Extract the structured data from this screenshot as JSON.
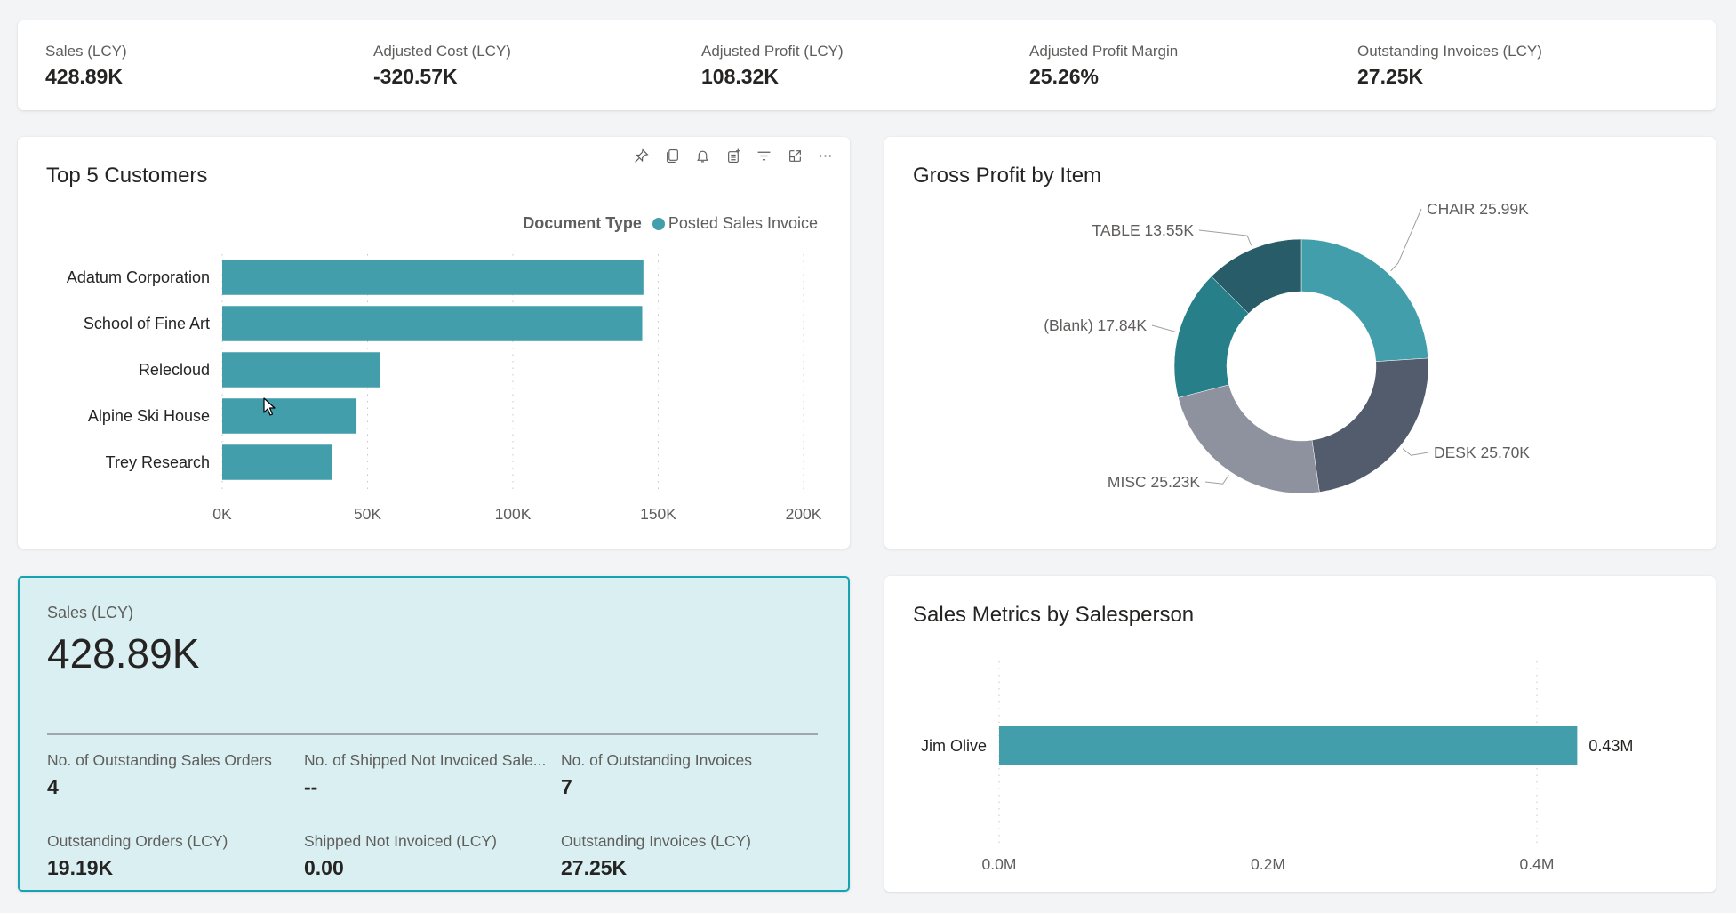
{
  "colors": {
    "teal": "#439eac",
    "accent_border": "#17a2b0",
    "selected_card_bg": "#d9eff2"
  },
  "kpis": [
    {
      "label": "Sales (LCY)",
      "value": "428.89K"
    },
    {
      "label": "Adjusted Cost (LCY)",
      "value": "-320.57K"
    },
    {
      "label": "Adjusted Profit (LCY)",
      "value": "108.32K"
    },
    {
      "label": "Adjusted Profit Margin",
      "value": "25.26%"
    },
    {
      "label": "Outstanding Invoices (LCY)",
      "value": "27.25K"
    }
  ],
  "top5": {
    "title": "Top 5 Customers",
    "toolbar": [
      {
        "name": "pin-icon",
        "tooltip": "Pin visual"
      },
      {
        "name": "copy-icon",
        "tooltip": "Copy visual"
      },
      {
        "name": "bell-icon",
        "tooltip": "Set alert"
      },
      {
        "name": "insights-icon",
        "tooltip": "Smart narrative"
      },
      {
        "name": "filter-icon",
        "tooltip": "Filters"
      },
      {
        "name": "focus-mode-icon",
        "tooltip": "Focus mode"
      },
      {
        "name": "more-options-icon",
        "tooltip": "More options"
      }
    ],
    "legend_title": "Document Type",
    "legend_item": "Posted Sales Invoice"
  },
  "gross": {
    "title": "Gross Profit by Item"
  },
  "sales_card": {
    "label": "Sales (LCY)",
    "value": "428.89K",
    "metrics": [
      {
        "label": "No. of Outstanding Sales Orders",
        "value": "4"
      },
      {
        "label": "No. of Shipped Not Invoiced Sale...",
        "value": "--"
      },
      {
        "label": "No. of Outstanding Invoices",
        "value": "7"
      },
      {
        "label": "Outstanding Orders (LCY)",
        "value": "19.19K"
      },
      {
        "label": "Shipped Not Invoiced (LCY)",
        "value": "0.00"
      },
      {
        "label": "Outstanding Invoices (LCY)",
        "value": "27.25K"
      }
    ]
  },
  "salesperson": {
    "title": "Sales Metrics by Salesperson"
  },
  "chart_data": [
    {
      "type": "bar",
      "orientation": "horizontal",
      "title": "Top 5 Customers",
      "categories": [
        "Adatum Corporation",
        "School of Fine Art",
        "Relecloud",
        "Alpine Ski House",
        "Trey Research"
      ],
      "series": [
        {
          "name": "Posted Sales Invoice",
          "values": [
            144900,
            144500,
            54400,
            46200,
            37900
          ],
          "color": "#439eac"
        }
      ],
      "legend_title": "Document Type",
      "legend_position": "top-right",
      "xlim": [
        0,
        200000
      ],
      "xticks": [
        0,
        50000,
        100000,
        150000,
        200000
      ],
      "xtick_labels": [
        "0K",
        "50K",
        "100K",
        "150K",
        "200K"
      ],
      "grid": "vertical-dotted",
      "xlabel": "",
      "ylabel": ""
    },
    {
      "type": "pie",
      "variant": "donut",
      "title": "Gross Profit by Item",
      "slices": [
        {
          "label": "CHAIR",
          "value": 25990,
          "display": "25.99K",
          "color": "#439eac"
        },
        {
          "label": "DESK",
          "value": 25700,
          "display": "25.70K",
          "color": "#525c6d"
        },
        {
          "label": "MISC",
          "value": 25230,
          "display": "25.23K",
          "color": "#8e929e"
        },
        {
          "label": "(Blank)",
          "value": 17840,
          "display": "17.84K",
          "color": "#277f89"
        },
        {
          "label": "TABLE",
          "value": 13550,
          "display": "13.55K",
          "color": "#295c69"
        }
      ]
    },
    {
      "type": "bar",
      "orientation": "horizontal",
      "title": "Sales Metrics by Salesperson",
      "categories": [
        "Jim Olive"
      ],
      "series": [
        {
          "name": "Sales",
          "values": [
            430000
          ],
          "data_labels": [
            "0.43M"
          ],
          "color": "#439eac"
        }
      ],
      "xlim": [
        0,
        0.48
      ],
      "xticks": [
        0,
        0.2,
        0.4
      ],
      "xtick_labels": [
        "0.0M",
        "0.2M",
        "0.4M"
      ],
      "xunit_scale": 1000000,
      "grid": "vertical-dotted",
      "xlabel": "",
      "ylabel": ""
    }
  ]
}
